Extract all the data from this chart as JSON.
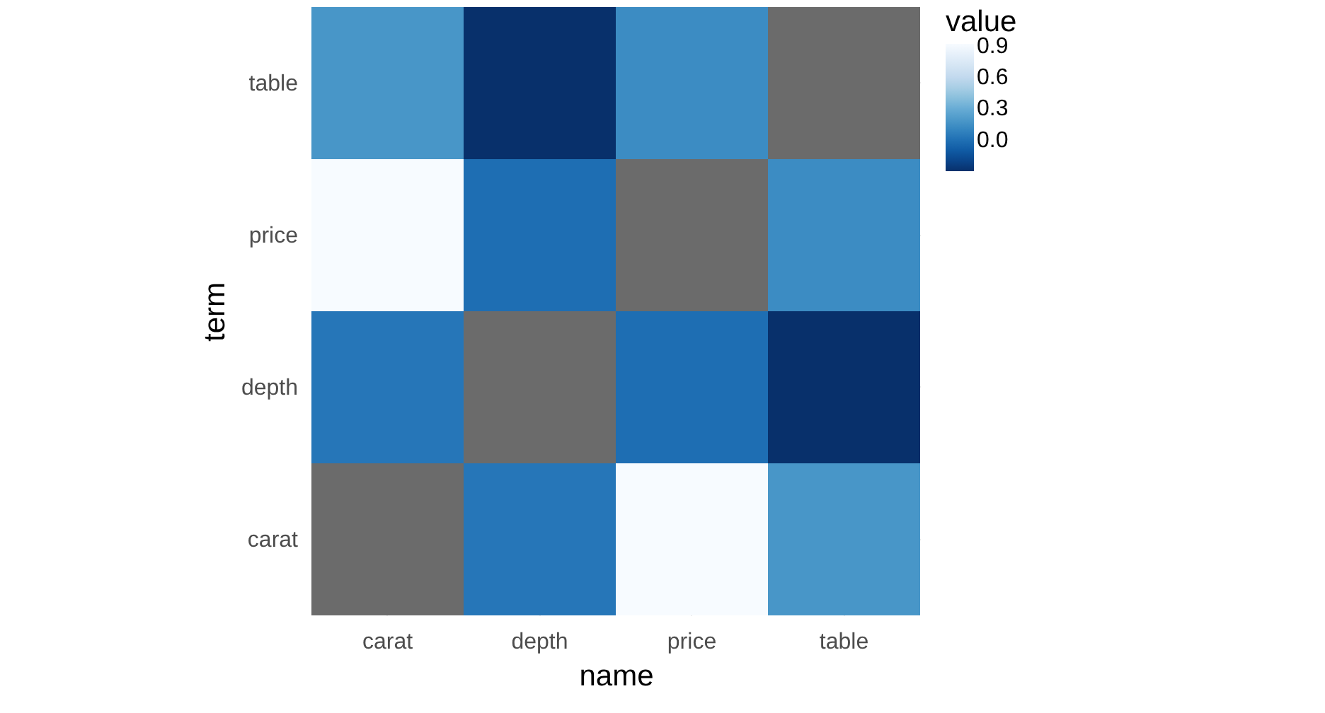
{
  "chart_data": {
    "type": "heatmap",
    "xlabel": "name",
    "ylabel": "term",
    "legend_title": "value",
    "categories": [
      "carat",
      "depth",
      "price",
      "table"
    ],
    "y_categories": [
      "table",
      "price",
      "depth",
      "carat"
    ],
    "cells": [
      [
        0.18,
        -0.3,
        0.13,
        null
      ],
      [
        0.92,
        -0.01,
        null,
        0.13
      ],
      [
        0.03,
        null,
        -0.01,
        -0.3
      ],
      [
        null,
        0.03,
        0.92,
        0.18
      ]
    ],
    "clim": [
      -0.3,
      0.92
    ],
    "cticks": [
      {
        "value": 0,
        "label": "0.0"
      },
      0.3,
      0.6,
      0.9
    ],
    "grid": true
  }
}
